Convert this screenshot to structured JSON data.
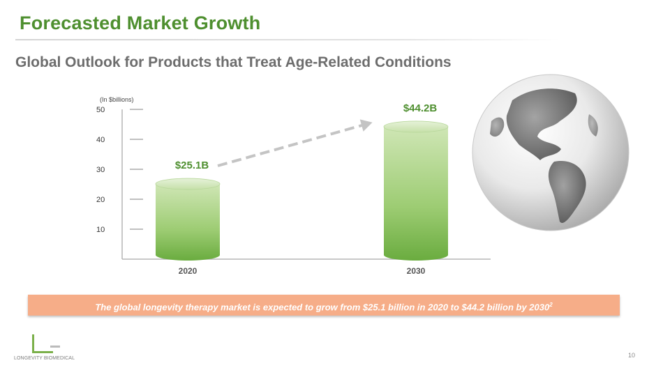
{
  "title": "Forecasted Market Growth",
  "subtitle": "Global Outlook for Products that Treat Age-Related Conditions",
  "banner": {
    "text": "The global longevity therapy market is expected to grow from $25.1 billion in 2020 to $44.2 billion by 2030",
    "footnote": "2"
  },
  "logo": {
    "text": "LONGEVITY BIOMEDICAL"
  },
  "page_number": "10",
  "colors": {
    "title": "#4e8f2f",
    "bar_top": "#cfe6b5",
    "bar_bottom": "#6aac3f",
    "value_label": "#4e8f2f",
    "banner": "#f6ad88"
  },
  "icons": {
    "globe": "globe-icon",
    "trend_arrow": "dashed-arrow-icon"
  },
  "chart_data": {
    "type": "bar",
    "unit_label": "(In $billions)",
    "categories": [
      "2020",
      "2030"
    ],
    "values": [
      25.1,
      44.2
    ],
    "data_labels": [
      "$25.1B",
      "$44.2B"
    ],
    "yticks": [
      10,
      20,
      30,
      40,
      50
    ],
    "ylim": [
      0,
      50
    ],
    "grid": false,
    "xlabel": "",
    "ylabel": ""
  }
}
